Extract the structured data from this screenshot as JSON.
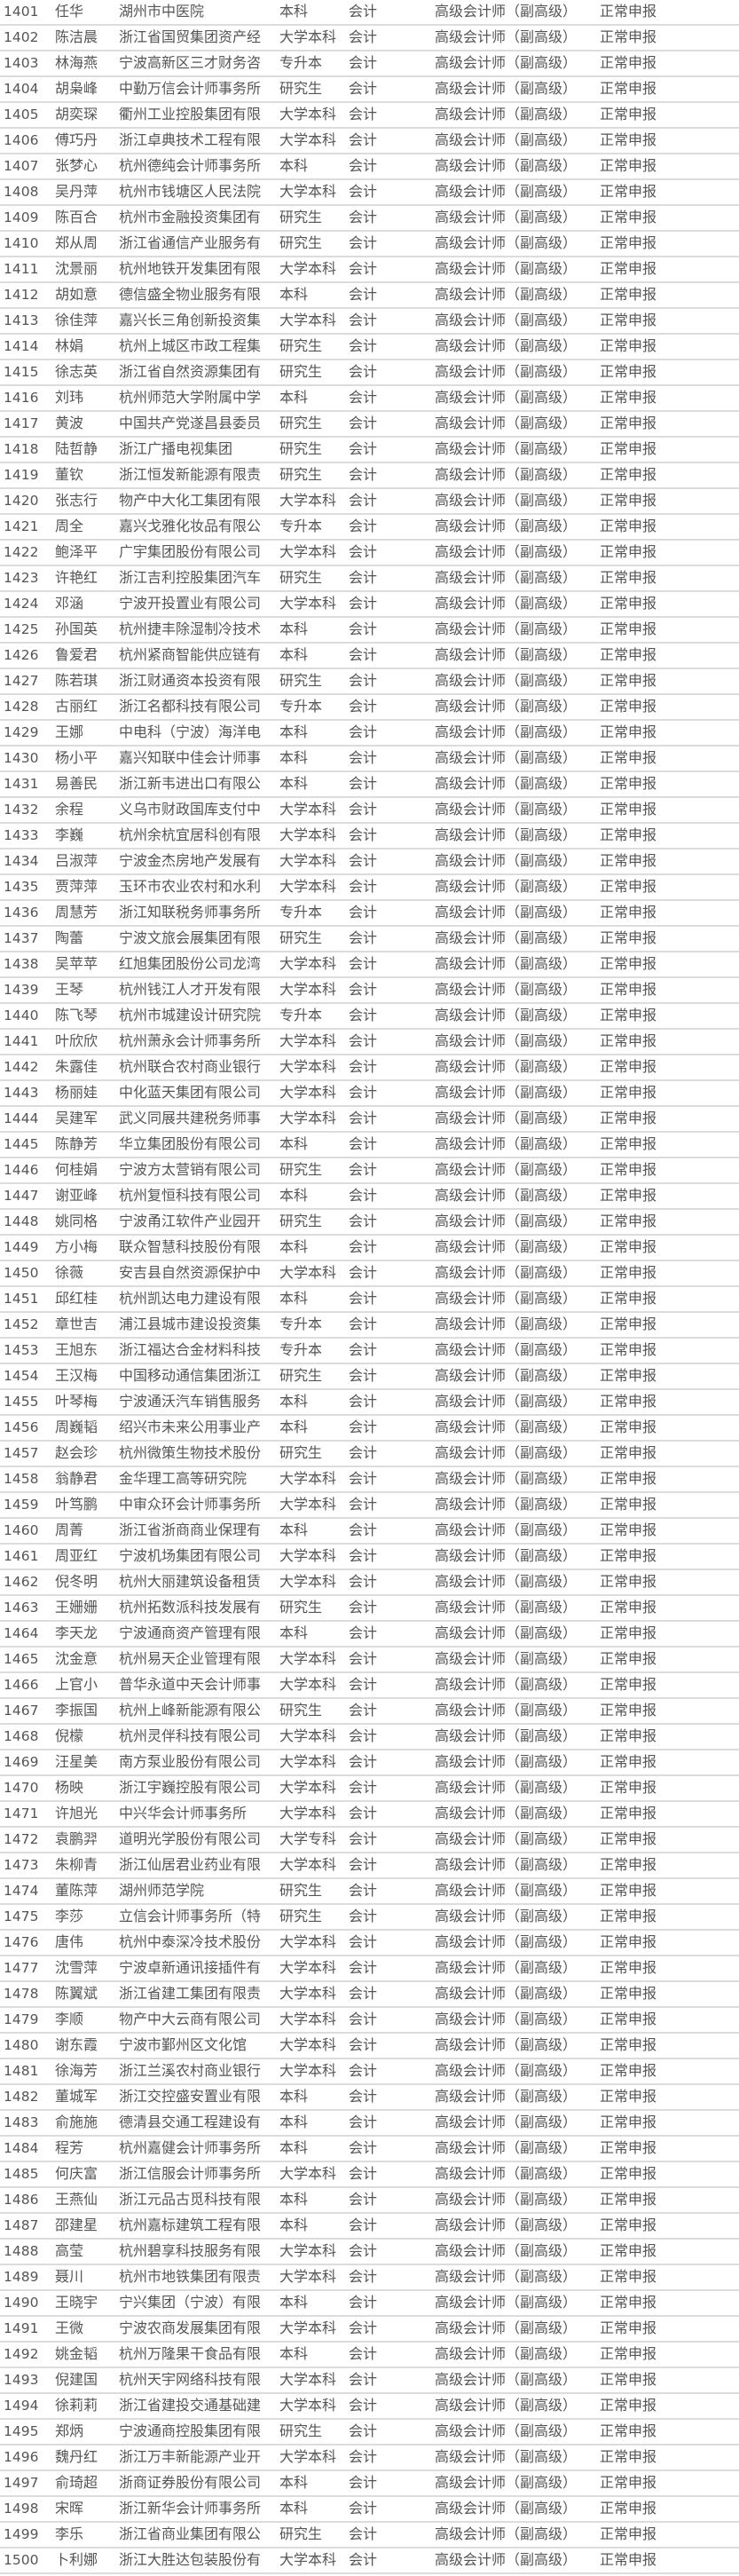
{
  "rows": [
    [
      "1401",
      "任华",
      "湖州市中医院",
      "本科",
      "会计",
      "高级会计师（副高级）",
      "正常申报"
    ],
    [
      "1402",
      "陈洁晨",
      "浙江省国贸集团资产经",
      "大学本科",
      "会计",
      "高级会计师（副高级）",
      "正常申报"
    ],
    [
      "1403",
      "林海燕",
      "宁波高新区三才财务咨",
      "专升本",
      "会计",
      "高级会计师（副高级）",
      "正常申报"
    ],
    [
      "1404",
      "胡枭峰",
      "中勤万信会计师事务所",
      "研究生",
      "会计",
      "高级会计师（副高级）",
      "正常申报"
    ],
    [
      "1405",
      "胡奕琛",
      "衢州工业控股集团有限",
      "大学本科",
      "会计",
      "高级会计师（副高级）",
      "正常申报"
    ],
    [
      "1406",
      "傅巧丹",
      "浙江卓典技术工程有限",
      "大学本科",
      "会计",
      "高级会计师（副高级）",
      "正常申报"
    ],
    [
      "1407",
      "张梦心",
      "杭州德纯会计师事务所",
      "本科",
      "会计",
      "高级会计师（副高级）",
      "正常申报"
    ],
    [
      "1408",
      "吴丹萍",
      "杭州市钱塘区人民法院",
      "大学本科",
      "会计",
      "高级会计师（副高级）",
      "正常申报"
    ],
    [
      "1409",
      "陈百合",
      "杭州市金融投资集团有",
      "研究生",
      "会计",
      "高级会计师（副高级）",
      "正常申报"
    ],
    [
      "1410",
      "郑从周",
      "浙江省通信产业服务有",
      "研究生",
      "会计",
      "高级会计师（副高级）",
      "正常申报"
    ],
    [
      "1411",
      "沈景丽",
      "杭州地铁开发集团有限",
      "大学本科",
      "会计",
      "高级会计师（副高级）",
      "正常申报"
    ],
    [
      "1412",
      "胡如意",
      "德信盛全物业服务有限",
      "本科",
      "会计",
      "高级会计师（副高级）",
      "正常申报"
    ],
    [
      "1413",
      "徐佳萍",
      "嘉兴长三角创新投资集",
      "大学本科",
      "会计",
      "高级会计师（副高级）",
      "正常申报"
    ],
    [
      "1414",
      "林娟",
      "杭州上城区市政工程集",
      "研究生",
      "会计",
      "高级会计师（副高级）",
      "正常申报"
    ],
    [
      "1415",
      "徐志英",
      "浙江省自然资源集团有",
      "研究生",
      "会计",
      "高级会计师（副高级）",
      "正常申报"
    ],
    [
      "1416",
      "刘玮",
      "杭州师范大学附属中学",
      "本科",
      "会计",
      "高级会计师（副高级）",
      "正常申报"
    ],
    [
      "1417",
      "黄波",
      "中国共产党遂昌县委员",
      "研究生",
      "会计",
      "高级会计师（副高级）",
      "正常申报"
    ],
    [
      "1418",
      "陆哲静",
      "浙江广播电视集团",
      "研究生",
      "会计",
      "高级会计师（副高级）",
      "正常申报"
    ],
    [
      "1419",
      "董钦",
      "浙江恒发新能源有限责",
      "研究生",
      "会计",
      "高级会计师（副高级）",
      "正常申报"
    ],
    [
      "1420",
      "张志行",
      "物产中大化工集团有限",
      "大学本科",
      "会计",
      "高级会计师（副高级）",
      "正常申报"
    ],
    [
      "1421",
      "周全",
      "嘉兴戈雅化妆品有限公",
      "专升本",
      "会计",
      "高级会计师（副高级）",
      "正常申报"
    ],
    [
      "1422",
      "鲍泽平",
      "广宇集团股份有限公司",
      "大学本科",
      "会计",
      "高级会计师（副高级）",
      "正常申报"
    ],
    [
      "1423",
      "许艳红",
      "浙江吉利控股集团汽车",
      "研究生",
      "会计",
      "高级会计师（副高级）",
      "正常申报"
    ],
    [
      "1424",
      "邓涵",
      "宁波开投置业有限公司",
      "大学本科",
      "会计",
      "高级会计师（副高级）",
      "正常申报"
    ],
    [
      "1425",
      "孙国英",
      "杭州捷丰除湿制冷技术",
      "本科",
      "会计",
      "高级会计师（副高级）",
      "正常申报"
    ],
    [
      "1426",
      "鲁爱君",
      "杭州紧商智能供应链有",
      "本科",
      "会计",
      "高级会计师（副高级）",
      "正常申报"
    ],
    [
      "1427",
      "陈若琪",
      "浙江财通资本投资有限",
      "研究生",
      "会计",
      "高级会计师（副高级）",
      "正常申报"
    ],
    [
      "1428",
      "古丽红",
      "浙江名都科技有限公司",
      "专升本",
      "会计",
      "高级会计师（副高级）",
      "正常申报"
    ],
    [
      "1429",
      "王娜",
      "中电科（宁波）海洋电",
      "本科",
      "会计",
      "高级会计师（副高级）",
      "正常申报"
    ],
    [
      "1430",
      "杨小平",
      "嘉兴知联中佳会计师事",
      "本科",
      "会计",
      "高级会计师（副高级）",
      "正常申报"
    ],
    [
      "1431",
      "易善民",
      "浙江新韦进出口有限公",
      "本科",
      "会计",
      "高级会计师（副高级）",
      "正常申报"
    ],
    [
      "1432",
      "余程",
      "义乌市财政国库支付中",
      "大学本科",
      "会计",
      "高级会计师（副高级）",
      "正常申报"
    ],
    [
      "1433",
      "李巍",
      "杭州余杭宜居科创有限",
      "大学本科",
      "会计",
      "高级会计师（副高级）",
      "正常申报"
    ],
    [
      "1434",
      "吕淑萍",
      "宁波金杰房地产发展有",
      "大学本科",
      "会计",
      "高级会计师（副高级）",
      "正常申报"
    ],
    [
      "1435",
      "贾萍萍",
      "玉环市农业农村和水利",
      "大学本科",
      "会计",
      "高级会计师（副高级）",
      "正常申报"
    ],
    [
      "1436",
      "周慧芳",
      "浙江知联税务师事务所",
      "专升本",
      "会计",
      "高级会计师（副高级）",
      "正常申报"
    ],
    [
      "1437",
      "陶蕾",
      "宁波文旅会展集团有限",
      "研究生",
      "会计",
      "高级会计师（副高级）",
      "正常申报"
    ],
    [
      "1438",
      "吴苹苹",
      "红旭集团股份公司龙湾",
      "大学本科",
      "会计",
      "高级会计师（副高级）",
      "正常申报"
    ],
    [
      "1439",
      "王琴",
      "杭州钱江人才开发有限",
      "大学本科",
      "会计",
      "高级会计师（副高级）",
      "正常申报"
    ],
    [
      "1440",
      "陈飞琴",
      "杭州市城建设计研究院",
      "专升本",
      "会计",
      "高级会计师（副高级）",
      "正常申报"
    ],
    [
      "1441",
      "叶欣欣",
      "杭州萧永会计师事务所",
      "大学本科",
      "会计",
      "高级会计师（副高级）",
      "正常申报"
    ],
    [
      "1442",
      "朱露佳",
      "杭州联合农村商业银行",
      "大学本科",
      "会计",
      "高级会计师（副高级）",
      "正常申报"
    ],
    [
      "1443",
      "杨丽娃",
      "中化蓝天集团有限公司",
      "大学本科",
      "会计",
      "高级会计师（副高级）",
      "正常申报"
    ],
    [
      "1444",
      "吴建军",
      "武义同展共建税务师事",
      "大学本科",
      "会计",
      "高级会计师（副高级）",
      "正常申报"
    ],
    [
      "1445",
      "陈静芳",
      "华立集团股份有限公司",
      "本科",
      "会计",
      "高级会计师（副高级）",
      "正常申报"
    ],
    [
      "1446",
      "何桂娟",
      "宁波方太营销有限公司",
      "研究生",
      "会计",
      "高级会计师（副高级）",
      "正常申报"
    ],
    [
      "1447",
      "谢亚峰",
      "杭州复恒科技有限公司",
      "本科",
      "会计",
      "高级会计师（副高级）",
      "正常申报"
    ],
    [
      "1448",
      "姚同格",
      "宁波甬江软件产业园开",
      "研究生",
      "会计",
      "高级会计师（副高级）",
      "正常申报"
    ],
    [
      "1449",
      "方小梅",
      "联众智慧科技股份有限",
      "本科",
      "会计",
      "高级会计师（副高级）",
      "正常申报"
    ],
    [
      "1450",
      "徐薇",
      "安吉县自然资源保护中",
      "大学本科",
      "会计",
      "高级会计师（副高级）",
      "正常申报"
    ],
    [
      "1451",
      "邱红桂",
      "杭州凯达电力建设有限",
      "本科",
      "会计",
      "高级会计师（副高级）",
      "正常申报"
    ],
    [
      "1452",
      "章世吉",
      "浦江县城市建设投资集",
      "专升本",
      "会计",
      "高级会计师（副高级）",
      "正常申报"
    ],
    [
      "1453",
      "王旭东",
      "浙江福达合金材料科技",
      "专升本",
      "会计",
      "高级会计师（副高级）",
      "正常申报"
    ],
    [
      "1454",
      "王汉梅",
      "中国移动通信集团浙江",
      "研究生",
      "会计",
      "高级会计师（副高级）",
      "正常申报"
    ],
    [
      "1455",
      "叶琴梅",
      "宁波通沃汽车销售服务",
      "本科",
      "会计",
      "高级会计师（副高级）",
      "正常申报"
    ],
    [
      "1456",
      "周巍韬",
      "绍兴市未来公用事业产",
      "本科",
      "会计",
      "高级会计师（副高级）",
      "正常申报"
    ],
    [
      "1457",
      "赵会珍",
      "杭州微策生物技术股份",
      "研究生",
      "会计",
      "高级会计师（副高级）",
      "正常申报"
    ],
    [
      "1458",
      "翁静君",
      "金华理工高等研究院",
      "大学本科",
      "会计",
      "高级会计师（副高级）",
      "正常申报"
    ],
    [
      "1459",
      "叶笃鹏",
      "中审众环会计师事务所",
      "大学本科",
      "会计",
      "高级会计师（副高级）",
      "正常申报"
    ],
    [
      "1460",
      "周菁",
      "浙江省浙商商业保理有",
      "本科",
      "会计",
      "高级会计师（副高级）",
      "正常申报"
    ],
    [
      "1461",
      "周亚红",
      "宁波机场集团有限公司",
      "大学本科",
      "会计",
      "高级会计师（副高级）",
      "正常申报"
    ],
    [
      "1462",
      "倪冬明",
      "杭州大丽建筑设备租赁",
      "大学本科",
      "会计",
      "高级会计师（副高级）",
      "正常申报"
    ],
    [
      "1463",
      "王姗姗",
      "杭州拓数派科技发展有",
      "研究生",
      "会计",
      "高级会计师（副高级）",
      "正常申报"
    ],
    [
      "1464",
      "李天龙",
      "宁波通商资产管理有限",
      "本科",
      "会计",
      "高级会计师（副高级）",
      "正常申报"
    ],
    [
      "1465",
      "沈金意",
      "杭州易天企业管理有限",
      "大学本科",
      "会计",
      "高级会计师（副高级）",
      "正常申报"
    ],
    [
      "1466",
      "上官小",
      "普华永道中天会计师事",
      "大学本科",
      "会计",
      "高级会计师（副高级）",
      "正常申报"
    ],
    [
      "1467",
      "李振国",
      "杭州上峰新能源有限公",
      "研究生",
      "会计",
      "高级会计师（副高级）",
      "正常申报"
    ],
    [
      "1468",
      "倪檬",
      "杭州灵伴科技有限公司",
      "大学本科",
      "会计",
      "高级会计师（副高级）",
      "正常申报"
    ],
    [
      "1469",
      "汪星美",
      "南方泵业股份有限公司",
      "大学本科",
      "会计",
      "高级会计师（副高级）",
      "正常申报"
    ],
    [
      "1470",
      "杨映",
      "浙江宇巍控股有限公司",
      "大学本科",
      "会计",
      "高级会计师（副高级）",
      "正常申报"
    ],
    [
      "1471",
      "许旭光",
      "中兴华会计师事务所",
      "大学本科",
      "会计",
      "高级会计师（副高级）",
      "正常申报"
    ],
    [
      "1472",
      "袁鹏羿",
      "道明光学股份有限公司",
      "大学专科",
      "会计",
      "高级会计师（副高级）",
      "正常申报"
    ],
    [
      "1473",
      "朱柳青",
      "浙江仙居君业药业有限",
      "大学本科",
      "会计",
      "高级会计师（副高级）",
      "正常申报"
    ],
    [
      "1474",
      "董陈萍",
      "湖州师范学院",
      "研究生",
      "会计",
      "高级会计师（副高级）",
      "正常申报"
    ],
    [
      "1475",
      "李莎",
      "立信会计师事务所（特",
      "研究生",
      "会计",
      "高级会计师（副高级）",
      "正常申报"
    ],
    [
      "1476",
      "唐伟",
      "杭州中泰深冷技术股份",
      "大学本科",
      "会计",
      "高级会计师（副高级）",
      "正常申报"
    ],
    [
      "1477",
      "沈雪萍",
      "宁波卓新通讯接插件有",
      "大学本科",
      "会计",
      "高级会计师（副高级）",
      "正常申报"
    ],
    [
      "1478",
      "陈翼斌",
      "浙江省建工集团有限责",
      "大学本科",
      "会计",
      "高级会计师（副高级）",
      "正常申报"
    ],
    [
      "1479",
      "李顺",
      "物产中大云商有限公司",
      "大学本科",
      "会计",
      "高级会计师（副高级）",
      "正常申报"
    ],
    [
      "1480",
      "谢东霞",
      "宁波市鄞州区文化馆",
      "大学本科",
      "会计",
      "高级会计师（副高级）",
      "正常申报"
    ],
    [
      "1481",
      "徐海芳",
      "浙江兰溪农村商业银行",
      "大学本科",
      "会计",
      "高级会计师（副高级）",
      "正常申报"
    ],
    [
      "1482",
      "董城军",
      "浙江交控盛安置业有限",
      "本科",
      "会计",
      "高级会计师（副高级）",
      "正常申报"
    ],
    [
      "1483",
      "俞施施",
      "德清县交通工程建设有",
      "本科",
      "会计",
      "高级会计师（副高级）",
      "正常申报"
    ],
    [
      "1484",
      "程芳",
      "杭州嘉健会计师事务所",
      "本科",
      "会计",
      "高级会计师（副高级）",
      "正常申报"
    ],
    [
      "1485",
      "何庆富",
      "浙江信服会计师事务所",
      "大学本科",
      "会计",
      "高级会计师（副高级）",
      "正常申报"
    ],
    [
      "1486",
      "王燕仙",
      "浙江元品古觅科技有限",
      "本科",
      "会计",
      "高级会计师（副高级）",
      "正常申报"
    ],
    [
      "1487",
      "邵建星",
      "杭州嘉标建筑工程有限",
      "本科",
      "会计",
      "高级会计师（副高级）",
      "正常申报"
    ],
    [
      "1488",
      "高莹",
      "杭州碧享科技服务有限",
      "大学本科",
      "会计",
      "高级会计师（副高级）",
      "正常申报"
    ],
    [
      "1489",
      "聂川",
      "杭州市地铁集团有限责",
      "大学本科",
      "会计",
      "高级会计师（副高级）",
      "正常申报"
    ],
    [
      "1490",
      "王晓宇",
      "宁兴集团（宁波）有限",
      "本科",
      "会计",
      "高级会计师（副高级）",
      "正常申报"
    ],
    [
      "1491",
      "王微",
      "宁波农商发展集团有限",
      "大学本科",
      "会计",
      "高级会计师（副高级）",
      "正常申报"
    ],
    [
      "1492",
      "姚金韬",
      "杭州万隆果干食品有限",
      "本科",
      "会计",
      "高级会计师（副高级）",
      "正常申报"
    ],
    [
      "1493",
      "倪建国",
      "杭州天宇网络科技有限",
      "大学本科",
      "会计",
      "高级会计师（副高级）",
      "正常申报"
    ],
    [
      "1494",
      "徐莉莉",
      "浙江省建投交通基础建",
      "大学本科",
      "会计",
      "高级会计师（副高级）",
      "正常申报"
    ],
    [
      "1495",
      "郑炳",
      "宁波通商控股集团有限",
      "研究生",
      "会计",
      "高级会计师（副高级）",
      "正常申报"
    ],
    [
      "1496",
      "魏丹红",
      "浙江万丰新能源产业开",
      "大学本科",
      "会计",
      "高级会计师（副高级）",
      "正常申报"
    ],
    [
      "1497",
      "俞琦超",
      "浙商证券股份有限公司",
      "本科",
      "会计",
      "高级会计师（副高级）",
      "正常申报"
    ],
    [
      "1498",
      "宋晖",
      "浙江新华会计师事务所",
      "本科",
      "会计",
      "高级会计师（副高级）",
      "正常申报"
    ],
    [
      "1499",
      "李乐",
      "浙江省商业集团有限公",
      "研究生",
      "会计",
      "高级会计师（副高级）",
      "正常申报"
    ],
    [
      "1500",
      "卜利娜",
      "浙江大胜达包装股份有",
      "大学本科",
      "会计",
      "高级会计师（副高级）",
      "正常申报"
    ]
  ]
}
